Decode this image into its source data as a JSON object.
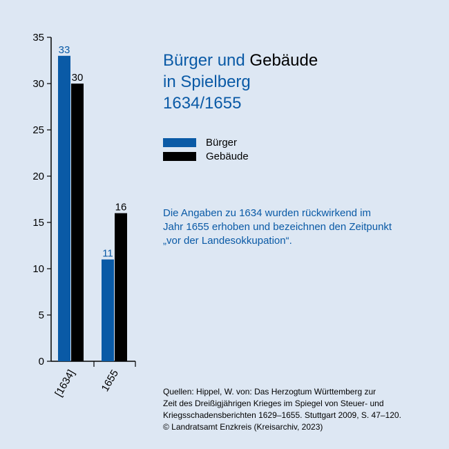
{
  "title": {
    "part1": "Bürger und",
    "part2": "Gebäude",
    "line2": "in Spielberg",
    "line3": "1634/1655"
  },
  "legend": [
    {
      "label": "Bürger",
      "color": "#0a5aa6"
    },
    {
      "label": "Gebäude",
      "color": "#000000"
    }
  ],
  "note": {
    "lines": [
      "Die Angaben zu 1634 wurden rückwirkend im",
      "Jahr 1655 erhoben und bezeichnen den Zeitpunkt",
      "„vor der Landesokkupation“."
    ]
  },
  "source": {
    "lines": [
      "Quellen: Hippel, W. von: Das Herzogtum Württemberg zur",
      "Zeit des Dreißigjährigen Krieges im Spiegel von Steuer- und",
      "Kriegsschadensberichten 1629–1655. Stuttgart 2009, S. 47–120.",
      "© Landratsamt Enzkreis (Kreisarchiv, 2023)"
    ]
  },
  "chart_data": {
    "type": "bar",
    "categories": [
      "[1634]",
      "1655"
    ],
    "series": [
      {
        "name": "Bürger",
        "values": [
          33,
          11
        ],
        "color": "#0a5aa6"
      },
      {
        "name": "Gebäude",
        "values": [
          30,
          16
        ],
        "color": "#000000"
      }
    ],
    "ylim": [
      0,
      35
    ],
    "yticks": [
      0,
      5,
      10,
      15,
      20,
      25,
      30,
      35
    ],
    "grid": false,
    "legend_position": "right"
  }
}
